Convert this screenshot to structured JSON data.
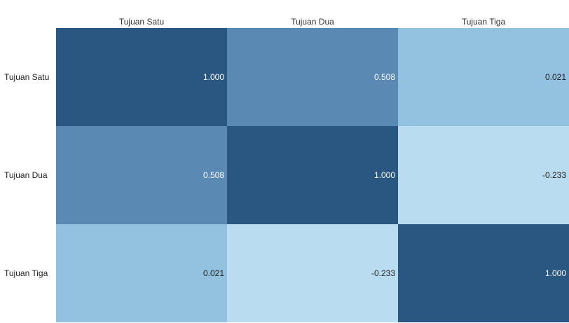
{
  "chart_data": {
    "type": "heatmap",
    "title": "",
    "columns": [
      "Tujuan Satu",
      "Tujuan Dua",
      "Tujuan Tiga"
    ],
    "rows": [
      "Tujuan Satu",
      "Tujuan Dua",
      "Tujuan Tiga"
    ],
    "values": [
      [
        1.0,
        0.508,
        0.021
      ],
      [
        0.508,
        1.0,
        -0.233
      ],
      [
        0.021,
        -0.233,
        1.0
      ]
    ],
    "value_labels": [
      [
        "1.000",
        "0.508",
        "0.021"
      ],
      [
        "0.508",
        "1.000",
        "-0.233"
      ],
      [
        "0.021",
        "-0.233",
        "1.000"
      ]
    ],
    "color_scale": {
      "low": "#b9dcf0",
      "mid_low": "#93c1e0",
      "mid_high": "#5a89b4",
      "high": "#2a5682"
    },
    "text_colors": {
      "light": "#ffffff",
      "dark": "#222222"
    },
    "legend": "none",
    "grid": false
  }
}
